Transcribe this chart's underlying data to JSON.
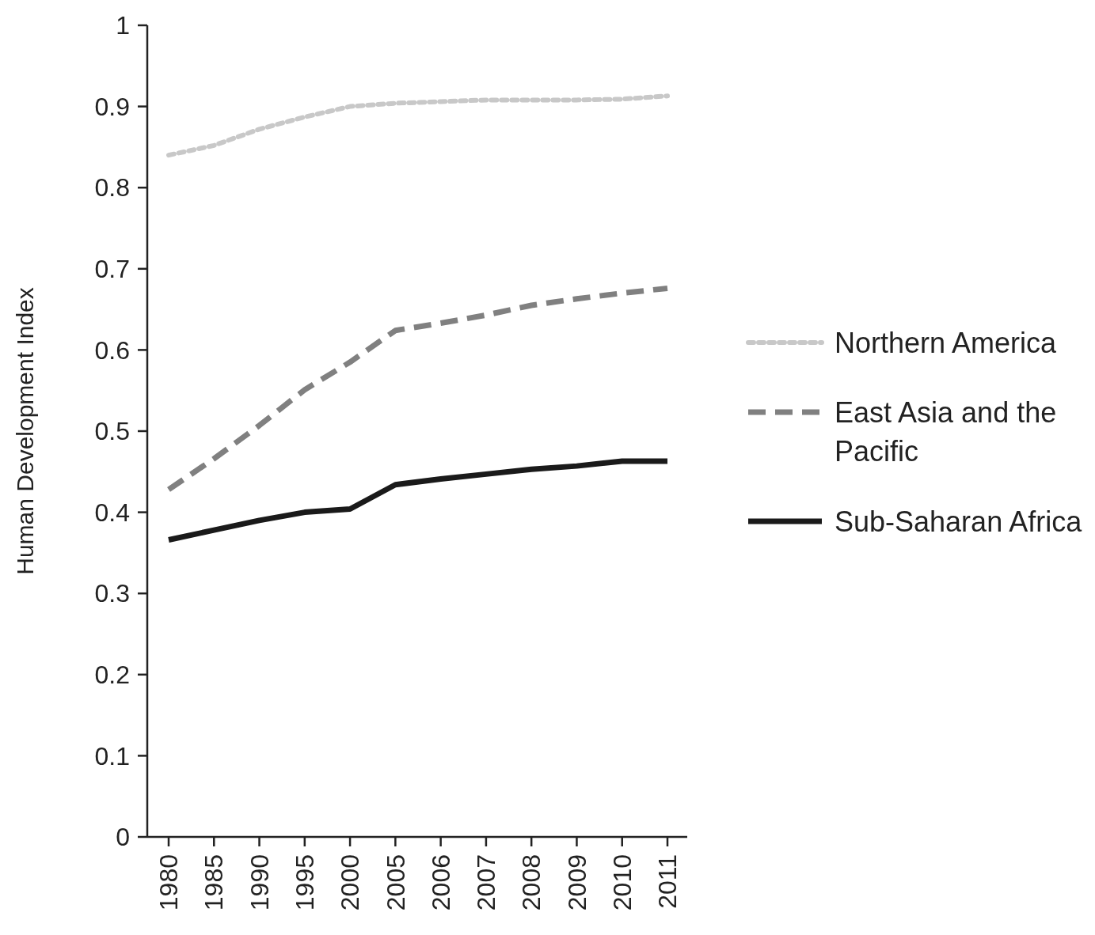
{
  "chart_data": {
    "type": "line",
    "ylabel": "Human Development Index",
    "categories": [
      "1980",
      "1985",
      "1990",
      "1995",
      "2000",
      "2005",
      "2006",
      "2007",
      "2008",
      "2009",
      "2010",
      "2011"
    ],
    "series": [
      {
        "name": "Northern America",
        "color": "#c8c8c8",
        "line_style": "dotted",
        "values": [
          0.84,
          0.852,
          0.872,
          0.887,
          0.9,
          0.904,
          0.906,
          0.908,
          0.908,
          0.908,
          0.909,
          0.913
        ]
      },
      {
        "name": "East Asia and the Pacific",
        "color": "#808080",
        "line_style": "dashed",
        "values": [
          0.428,
          0.466,
          0.507,
          0.551,
          0.585,
          0.624,
          0.633,
          0.643,
          0.655,
          0.663,
          0.67,
          0.676
        ]
      },
      {
        "name": "Sub-Saharan Africa",
        "color": "#1a1a1a",
        "line_style": "solid",
        "values": [
          0.366,
          0.378,
          0.39,
          0.4,
          0.404,
          0.434,
          0.441,
          0.447,
          0.453,
          0.457,
          0.463,
          0.463
        ]
      }
    ],
    "ylim": [
      0,
      1
    ],
    "yticks": [
      0,
      0.1,
      0.2,
      0.3,
      0.4,
      0.5,
      0.6,
      0.7,
      0.8,
      0.9,
      1
    ],
    "grid": false,
    "legend": "right",
    "marker": "none"
  }
}
